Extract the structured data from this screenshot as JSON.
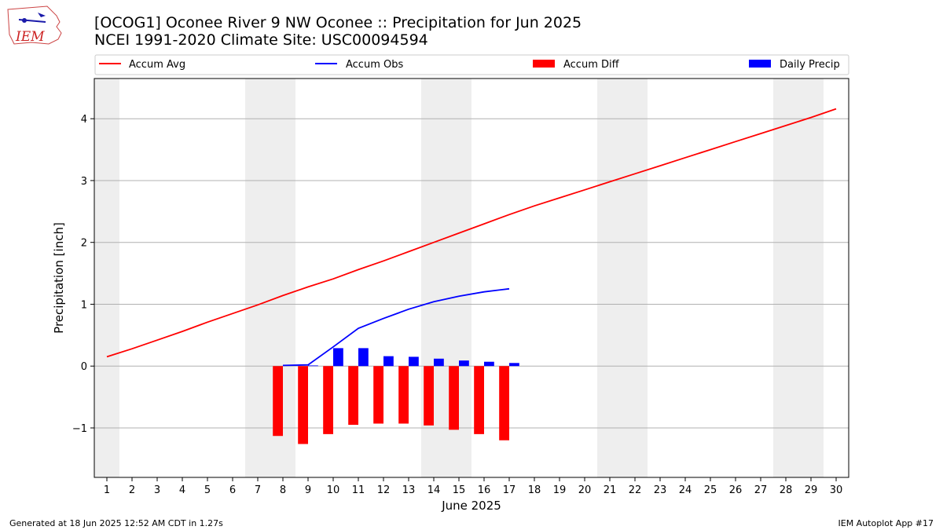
{
  "title_line1": "[OCOG1] Oconee River 9 NW Oconee :: Precipitation for Jun 2025",
  "title_line2": "NCEI 1991-2020 Climate Site: USC00094594",
  "logo_text": "IEM",
  "footer_left": "Generated at 18 Jun 2025 12:52 AM CDT in 1.27s",
  "footer_right": "IEM Autoplot App #17",
  "chart_data": {
    "type": "bar",
    "title": "[OCOG1] Oconee River 9 NW Oconee :: Precipitation for Jun 2025",
    "subtitle": "NCEI 1991-2020 Climate Site: USC00094594",
    "xlabel": "June 2025",
    "ylabel": "Precipitation [inch]",
    "xlim": [
      0.5,
      30.5
    ],
    "ylim": [
      -1.8,
      4.65
    ],
    "x_ticks": [
      1,
      2,
      3,
      4,
      5,
      6,
      7,
      8,
      9,
      10,
      11,
      12,
      13,
      14,
      15,
      16,
      17,
      18,
      19,
      20,
      21,
      22,
      23,
      24,
      25,
      26,
      27,
      28,
      29,
      30
    ],
    "y_ticks": [
      -1,
      0,
      1,
      2,
      3,
      4
    ],
    "y_tick_labels": [
      "−1",
      "0",
      "1",
      "2",
      "3",
      "4"
    ],
    "grid": "horizontal",
    "legend_position": "top",
    "weekend_shading": [
      [
        0.5,
        1.5
      ],
      [
        6.5,
        8.5
      ],
      [
        13.5,
        15.5
      ],
      [
        20.5,
        22.5
      ],
      [
        27.5,
        29.5
      ]
    ],
    "shade_color": "#eeeeee",
    "series": [
      {
        "name": "Accum Avg",
        "kind": "line",
        "color": "#ff0000",
        "x": [
          1,
          2,
          3,
          4,
          5,
          6,
          7,
          8,
          9,
          10,
          11,
          12,
          13,
          14,
          15,
          16,
          17,
          18,
          19,
          20,
          21,
          22,
          23,
          24,
          25,
          26,
          27,
          28,
          29,
          30
        ],
        "values": [
          0.15,
          0.28,
          0.42,
          0.56,
          0.71,
          0.85,
          0.99,
          1.14,
          1.28,
          1.41,
          1.56,
          1.7,
          1.85,
          2.0,
          2.15,
          2.3,
          2.45,
          2.59,
          2.72,
          2.85,
          2.98,
          3.11,
          3.24,
          3.37,
          3.5,
          3.63,
          3.76,
          3.89,
          4.02,
          4.16
        ]
      },
      {
        "name": "Accum Obs",
        "kind": "line",
        "color": "#0000ff",
        "x": [
          8,
          9,
          10,
          11,
          12,
          13,
          14,
          15,
          16,
          17
        ],
        "values": [
          0.01,
          0.02,
          0.31,
          0.61,
          0.77,
          0.92,
          1.04,
          1.13,
          1.2,
          1.25
        ]
      },
      {
        "name": "Accum Diff",
        "kind": "bar",
        "color": "#ff0000",
        "x": [
          8,
          9,
          10,
          11,
          12,
          13,
          14,
          15,
          16,
          17
        ],
        "values": [
          -1.13,
          -1.26,
          -1.1,
          -0.95,
          -0.93,
          -0.93,
          -0.96,
          -1.03,
          -1.1,
          -1.2
        ]
      },
      {
        "name": "Daily Precip",
        "kind": "bar",
        "color": "#0000ff",
        "x": [
          8,
          9,
          10,
          11,
          12,
          13,
          14,
          15,
          16,
          17
        ],
        "values": [
          0.0,
          0.01,
          0.29,
          0.29,
          0.16,
          0.15,
          0.12,
          0.09,
          0.07,
          0.05
        ]
      }
    ]
  }
}
